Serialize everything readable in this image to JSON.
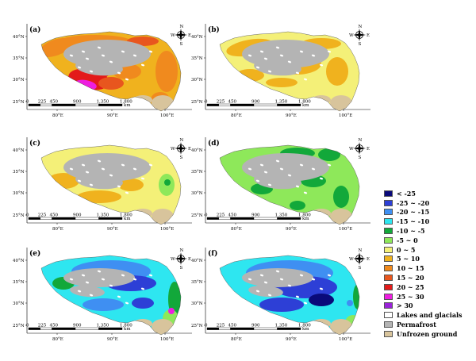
{
  "figure": {
    "panels": [
      {
        "id": "a",
        "label": "(a)",
        "theme": "a"
      },
      {
        "id": "b",
        "label": "(b)",
        "theme": "b"
      },
      {
        "id": "c",
        "label": "(c)",
        "theme": "c"
      },
      {
        "id": "d",
        "label": "(d)",
        "theme": "d"
      },
      {
        "id": "e",
        "label": "(e)",
        "theme": "e"
      },
      {
        "id": "f",
        "label": "(f)",
        "theme": "f"
      }
    ],
    "lat_ticks": [
      "40°N",
      "35°N",
      "30°N",
      "25°N"
    ],
    "lon_ticks": [
      "80°E",
      "90°E",
      "100°E"
    ],
    "scalebar": {
      "ticks": [
        "0",
        "225",
        "450",
        "900",
        "1,350",
        "1,800"
      ],
      "unit": "km"
    },
    "north_arrow": {
      "n": "N",
      "s": "S",
      "w": "W",
      "e": "E"
    },
    "scalebar_variants": {
      "c": [
        "0",
        "225",
        "450",
        "900",
        "1,350",
        "1,800"
      ],
      "e": [
        "0",
        "225",
        "450",
        "900",
        "1,350",
        "1,800"
      ]
    }
  },
  "legend": {
    "items": [
      {
        "label": "< -25",
        "color": "#0a0a7a"
      },
      {
        "label": "-25 ~ -20",
        "color": "#2d3fd6"
      },
      {
        "label": "-20 ~ -15",
        "color": "#3f8ff2"
      },
      {
        "label": "-15 ~ -10",
        "color": "#2ee6f0"
      },
      {
        "label": "-10 ~ -5",
        "color": "#12a83a"
      },
      {
        "label": "-5 ~ 0",
        "color": "#8ee85a"
      },
      {
        "label": "0 ~ 5",
        "color": "#f4f078"
      },
      {
        "label": "5 ~ 10",
        "color": "#f0b21e"
      },
      {
        "label": "10 ~ 15",
        "color": "#f08a1e"
      },
      {
        "label": "15 ~ 20",
        "color": "#e8561e"
      },
      {
        "label": "20 ~ 25",
        "color": "#e31a1a"
      },
      {
        "label": "25 ~ 30",
        "color": "#ee1ee0"
      },
      {
        "label": "> 30",
        "color": "#9a22d8"
      },
      {
        "label": "Lakes and glacials",
        "color": "#ffffff"
      },
      {
        "label": "Permafrost",
        "color": "#b4b4b4"
      },
      {
        "label": "Unfrozen ground",
        "color": "#d8c49c"
      }
    ]
  }
}
